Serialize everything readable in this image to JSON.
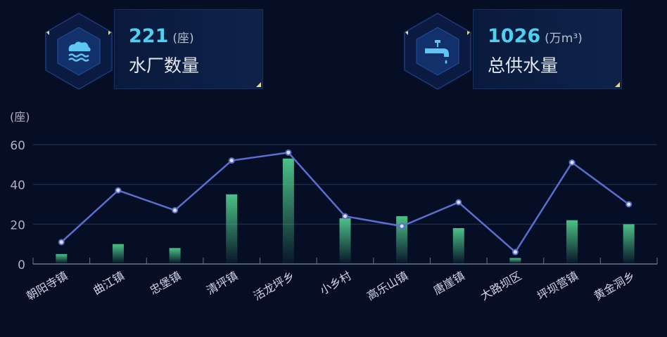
{
  "cards": [
    {
      "value": "221",
      "unit": "(座)",
      "label": "水厂数量",
      "icon": "water-plant-icon"
    },
    {
      "value": "1026",
      "unit": "(万m³)",
      "label": "总供水量",
      "icon": "water-tap-icon"
    }
  ],
  "chart_data": {
    "type": "bar+line",
    "ylabel": "(座)",
    "ylim": [
      0,
      60
    ],
    "yticks": [
      0,
      20,
      40,
      60
    ],
    "grid": true,
    "categories": [
      "朝阳寺镇",
      "曲江镇",
      "忠堡镇",
      "清坪镇",
      "活龙坪乡",
      "小乡村",
      "高乐山镇",
      "唐崖镇",
      "大路坝区",
      "坪坝营镇",
      "黄金洞乡"
    ],
    "series": [
      {
        "type": "bar",
        "values": [
          5,
          10,
          8,
          35,
          53,
          23,
          24,
          18,
          3,
          22,
          20
        ],
        "color": "#4cc187"
      },
      {
        "type": "line",
        "values": [
          11,
          37,
          27,
          52,
          56,
          24,
          19,
          31,
          6,
          51,
          30
        ],
        "color": "#5b6fd0"
      }
    ]
  }
}
